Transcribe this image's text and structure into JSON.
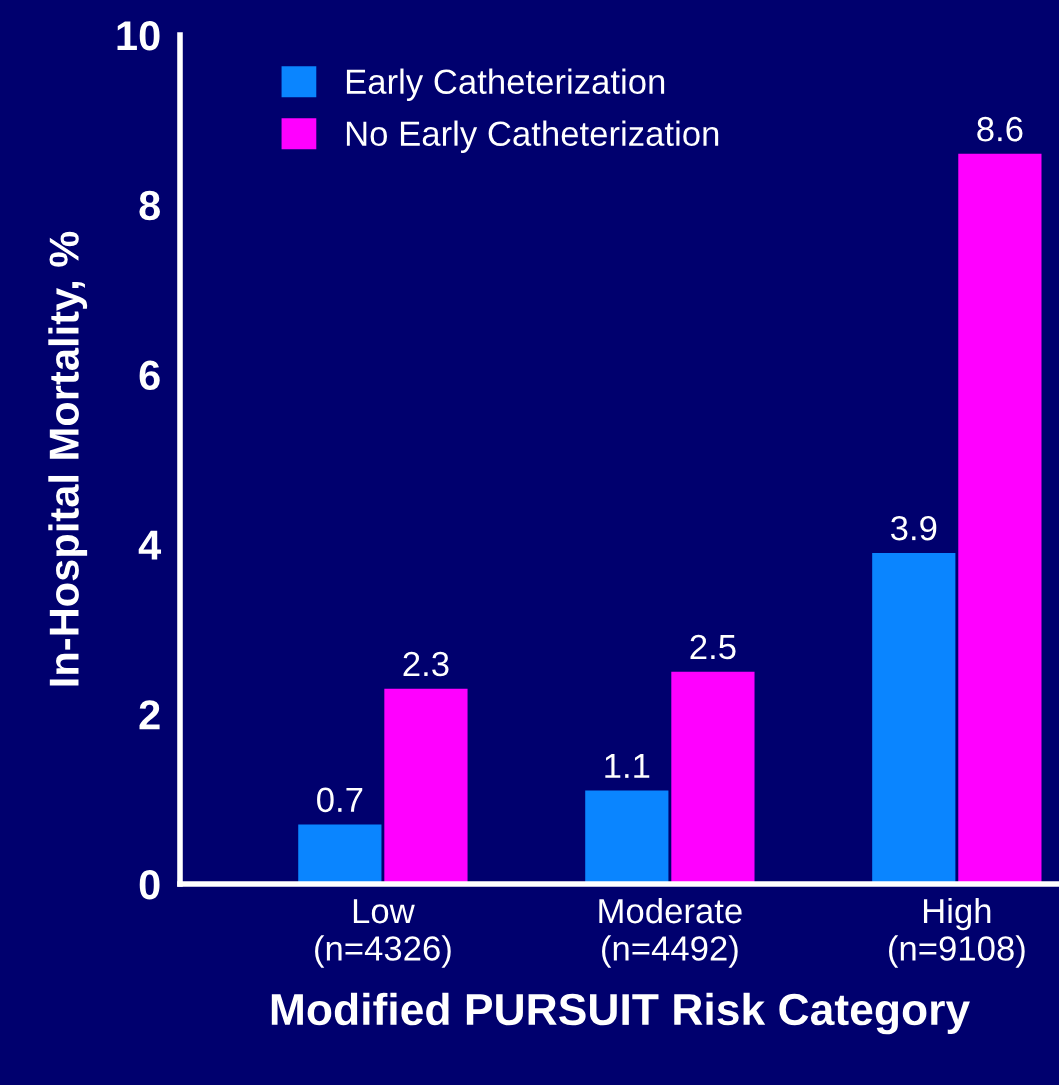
{
  "chart_data": {
    "type": "bar",
    "xlabel": "Modified PURSUIT Risk Category",
    "ylabel": "In-Hospital Mortality, %",
    "categories": [
      "Low\n(n=4326)",
      "Moderate\n(n=4492)",
      "High\n(n=9108)"
    ],
    "series": [
      {
        "name": "Early Catheterization",
        "color": "#0a85ff",
        "values": [
          0.7,
          1.1,
          3.9
        ]
      },
      {
        "name": "No Early Catheterization",
        "color": "#ff00ff",
        "values": [
          2.3,
          2.5,
          8.6
        ]
      }
    ],
    "ylim": [
      0,
      10
    ],
    "yticks": [
      0,
      2,
      4,
      6,
      8,
      10
    ],
    "data_labels": true,
    "legend": "top left",
    "grid": false
  }
}
